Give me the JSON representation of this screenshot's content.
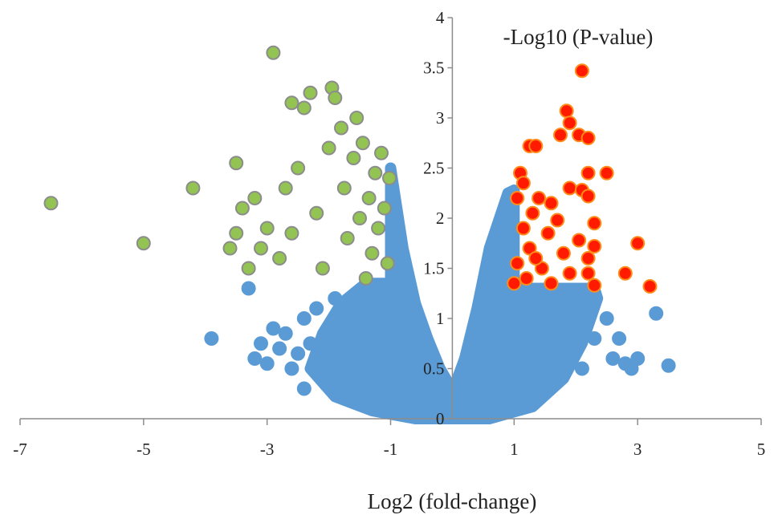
{
  "chart_data": {
    "type": "scatter",
    "title": "",
    "xlabel": "Log2 (fold-change)",
    "ylabel": "-Log10 (P-value)",
    "xlim": [
      -7,
      5
    ],
    "ylim": [
      0,
      4
    ],
    "x_ticks": [
      -7,
      -5,
      -3,
      -1,
      1,
      3,
      5
    ],
    "y_ticks": [
      0,
      0.5,
      1,
      1.5,
      2,
      2.5,
      3,
      3.5,
      4
    ],
    "legend": "none",
    "grid": false,
    "thresholds": {
      "log2_fold_change": 1,
      "neg_log10_p": 1.3
    },
    "colors": {
      "not_significant": "#5b9bd5",
      "down_regulated": "#92c353",
      "down_regulated_edge": "#8c8c8c",
      "up_regulated": "#ff1a00",
      "up_regulated_edge": "#ff8c1a",
      "axis": "#8c8c8c"
    },
    "series": [
      {
        "category": "not_significant",
        "points": [
          [
            -3.9,
            0.8
          ],
          [
            -3.3,
            1.3
          ],
          [
            -3.2,
            0.6
          ],
          [
            -3.1,
            0.75
          ],
          [
            -3.0,
            0.55
          ],
          [
            -2.9,
            0.9
          ],
          [
            -2.8,
            0.7
          ],
          [
            -2.7,
            0.85
          ],
          [
            -2.6,
            0.5
          ],
          [
            -2.5,
            0.65
          ],
          [
            -2.4,
            0.3
          ],
          [
            -2.4,
            1.0
          ],
          [
            -2.3,
            0.75
          ],
          [
            -2.2,
            1.1
          ],
          [
            -2.1,
            0.55
          ],
          [
            -2.0,
            0.9
          ],
          [
            -1.9,
            1.2
          ],
          [
            -1.8,
            0.45
          ],
          [
            -1.7,
            0.7
          ],
          [
            -1.6,
            1.0
          ],
          [
            -1.5,
            0.35
          ],
          [
            -1.4,
            0.8
          ],
          [
            -1.3,
            0.55
          ],
          [
            -1.2,
            1.1
          ],
          [
            -1.1,
            0.2
          ],
          [
            -1.0,
            0.6
          ],
          [
            -0.9,
            0.9
          ],
          [
            -0.8,
            0.3
          ],
          [
            -0.7,
            0.5
          ],
          [
            -0.6,
            0.15
          ],
          [
            -0.5,
            0.25
          ],
          [
            -0.4,
            0.1
          ],
          [
            -0.3,
            0.05
          ],
          [
            0.3,
            0.05
          ],
          [
            0.5,
            0.1
          ],
          [
            0.7,
            0.2
          ],
          [
            0.9,
            0.4
          ],
          [
            1.1,
            0.6
          ],
          [
            1.3,
            0.9
          ],
          [
            1.5,
            0.4
          ],
          [
            1.7,
            0.7
          ],
          [
            1.9,
            1.1
          ],
          [
            2.1,
            0.5
          ],
          [
            2.3,
            0.8
          ],
          [
            2.5,
            1.0
          ],
          [
            2.6,
            0.6
          ],
          [
            2.7,
            0.8
          ],
          [
            2.8,
            0.55
          ],
          [
            2.9,
            0.5
          ],
          [
            3.0,
            0.6
          ],
          [
            3.3,
            1.05
          ],
          [
            3.5,
            0.53
          ]
        ]
      },
      {
        "category": "down_regulated",
        "points": [
          [
            -6.5,
            2.15
          ],
          [
            -5.0,
            1.75
          ],
          [
            -4.2,
            2.3
          ],
          [
            -3.5,
            2.55
          ],
          [
            -3.4,
            2.1
          ],
          [
            -3.5,
            1.85
          ],
          [
            -3.3,
            1.5
          ],
          [
            -3.1,
            1.7
          ],
          [
            -3.0,
            1.9
          ],
          [
            -3.2,
            2.2
          ],
          [
            -2.9,
            3.65
          ],
          [
            -2.7,
            2.3
          ],
          [
            -2.6,
            3.15
          ],
          [
            -2.5,
            2.5
          ],
          [
            -2.4,
            3.1
          ],
          [
            -2.3,
            3.25
          ],
          [
            -2.2,
            2.05
          ],
          [
            -2.1,
            1.5
          ],
          [
            -2.0,
            2.7
          ],
          [
            -1.95,
            3.3
          ],
          [
            -1.9,
            3.2
          ],
          [
            -1.8,
            2.9
          ],
          [
            -1.75,
            2.3
          ],
          [
            -1.7,
            1.8
          ],
          [
            -1.6,
            2.6
          ],
          [
            -1.55,
            3.0
          ],
          [
            -1.5,
            2.0
          ],
          [
            -1.45,
            2.75
          ],
          [
            -1.4,
            1.4
          ],
          [
            -1.35,
            2.2
          ],
          [
            -1.3,
            1.65
          ],
          [
            -1.25,
            2.45
          ],
          [
            -1.2,
            1.9
          ],
          [
            -1.15,
            2.65
          ],
          [
            -1.1,
            2.1
          ],
          [
            -1.05,
            1.55
          ],
          [
            -1.02,
            2.4
          ],
          [
            -2.8,
            1.6
          ],
          [
            -2.6,
            1.85
          ],
          [
            -3.6,
            1.7
          ]
        ]
      },
      {
        "category": "up_regulated",
        "points": [
          [
            2.1,
            3.47
          ],
          [
            1.85,
            3.07
          ],
          [
            1.9,
            2.95
          ],
          [
            1.75,
            2.83
          ],
          [
            2.05,
            2.83
          ],
          [
            2.2,
            2.8
          ],
          [
            1.25,
            2.72
          ],
          [
            1.35,
            2.72
          ],
          [
            2.2,
            2.45
          ],
          [
            2.5,
            2.45
          ],
          [
            1.1,
            2.45
          ],
          [
            1.15,
            2.35
          ],
          [
            1.9,
            2.3
          ],
          [
            2.1,
            2.28
          ],
          [
            2.2,
            2.22
          ],
          [
            1.05,
            2.2
          ],
          [
            1.4,
            2.2
          ],
          [
            1.6,
            2.15
          ],
          [
            1.3,
            2.05
          ],
          [
            1.7,
            1.98
          ],
          [
            2.3,
            1.95
          ],
          [
            1.15,
            1.9
          ],
          [
            1.55,
            1.85
          ],
          [
            2.05,
            1.78
          ],
          [
            2.3,
            1.72
          ],
          [
            3.0,
            1.75
          ],
          [
            1.25,
            1.7
          ],
          [
            1.8,
            1.65
          ],
          [
            2.2,
            1.6
          ],
          [
            1.05,
            1.55
          ],
          [
            1.45,
            1.5
          ],
          [
            1.9,
            1.45
          ],
          [
            2.2,
            1.45
          ],
          [
            2.8,
            1.45
          ],
          [
            1.2,
            1.4
          ],
          [
            1.6,
            1.35
          ],
          [
            2.3,
            1.33
          ],
          [
            3.2,
            1.32
          ],
          [
            1.0,
            1.35
          ],
          [
            1.35,
            1.6
          ]
        ]
      }
    ]
  }
}
